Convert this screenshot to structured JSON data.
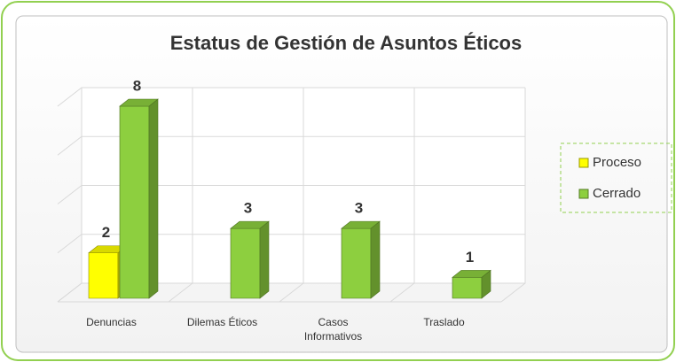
{
  "chart_data": {
    "type": "bar3d",
    "title": "Estatus de Gestión de Asuntos Éticos",
    "categories": [
      "Denuncias",
      "Dilemas Éticos",
      "Casos Informativos",
      "Traslado"
    ],
    "series": [
      {
        "name": "Proceso",
        "color": "#ffff00",
        "values": [
          2,
          null,
          null,
          null
        ]
      },
      {
        "name": "Cerrado",
        "color": "#8dcf3f",
        "values": [
          8,
          3,
          3,
          1
        ]
      }
    ],
    "ylim": [
      0,
      8
    ],
    "yticks": [
      0,
      2,
      4,
      6,
      8
    ],
    "grid": true,
    "legend": "right"
  }
}
